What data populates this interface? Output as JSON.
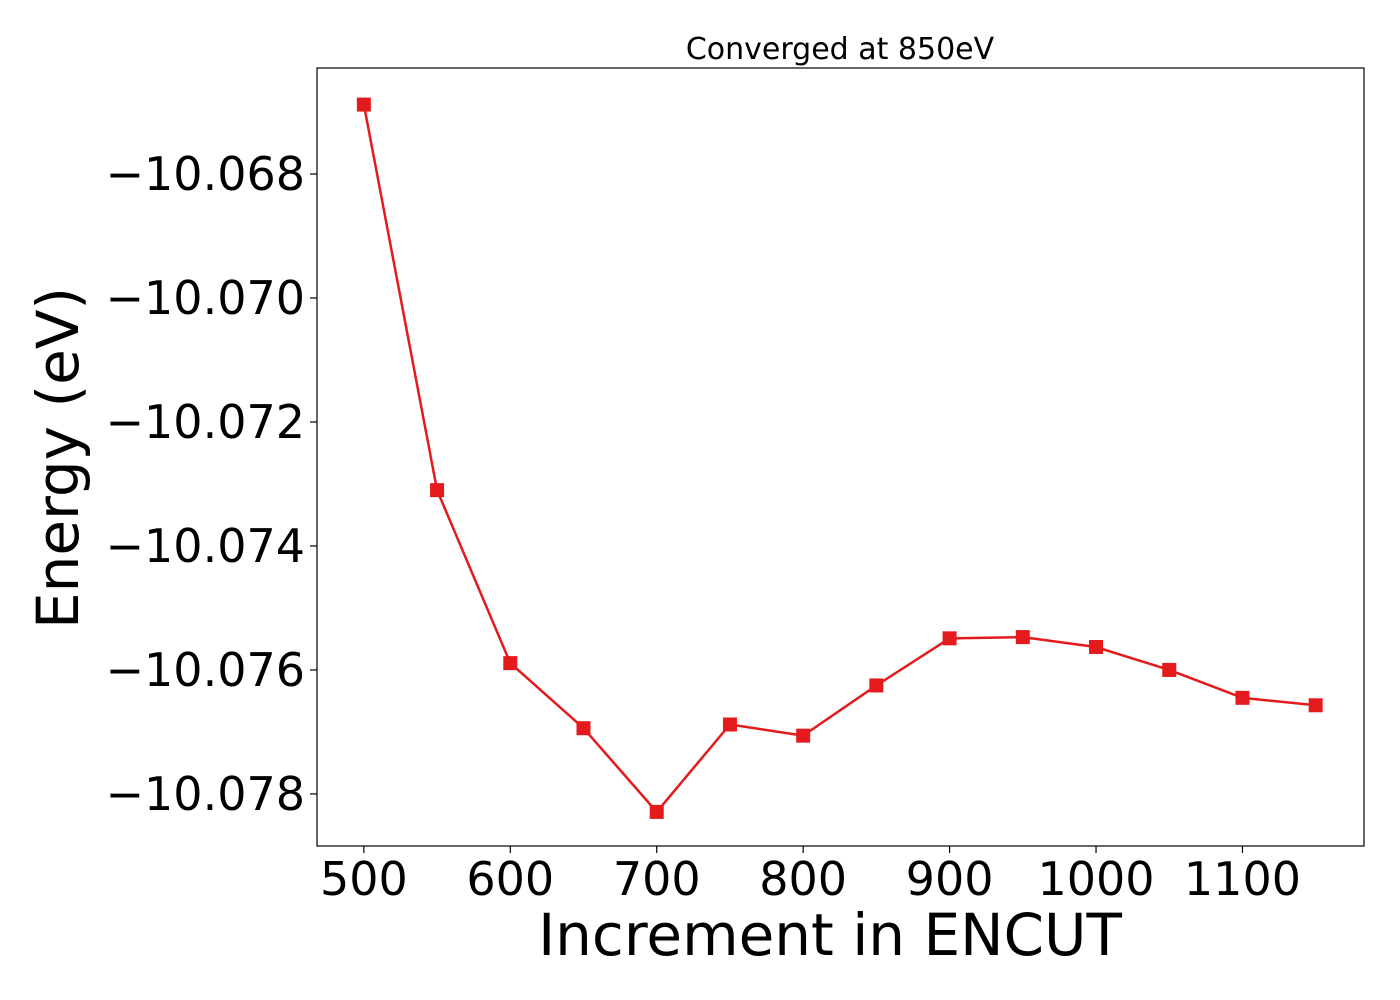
{
  "chart_data": {
    "type": "line",
    "title": "Converged at 850eV",
    "xlabel": "Increment in ENCUT",
    "ylabel": "Energy (eV)",
    "x": [
      500,
      550,
      600,
      650,
      700,
      750,
      800,
      850,
      900,
      950,
      1000,
      1050,
      1100,
      1150
    ],
    "series": [
      {
        "values": [
          -10.06688,
          -10.0731,
          -10.07589,
          -10.07694,
          -10.07829,
          -10.07688,
          -10.07706,
          -10.07625,
          -10.07549,
          -10.07547,
          -10.07563,
          -10.076,
          -10.07645,
          -10.07657
        ],
        "color": "#e41a1c",
        "marker": "square"
      }
    ],
    "xlim": [
      468,
      1183
    ],
    "ylim": [
      -10.07884,
      -10.06629
    ],
    "xticks": [
      500,
      600,
      700,
      800,
      900,
      1000,
      1100
    ],
    "xtick_labels": [
      "500",
      "600",
      "700",
      "800",
      "900",
      "1000",
      "1100"
    ],
    "yticks": [
      -10.068,
      -10.07,
      -10.072,
      -10.074,
      -10.076,
      -10.078
    ],
    "ytick_labels": [
      "−10.068",
      "−10.070",
      "−10.072",
      "−10.074",
      "−10.076",
      "−10.078"
    ],
    "grid": false,
    "legend": "none"
  }
}
